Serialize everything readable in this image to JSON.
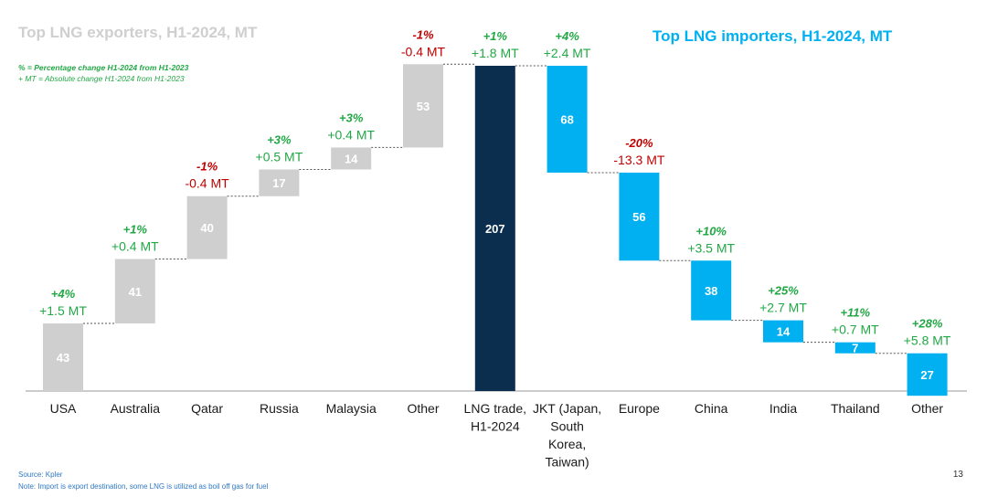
{
  "page": {
    "title_exporters": "Top LNG exporters, H1-2024, MT",
    "title_importers": "Top LNG importers, H1-2024, MT",
    "legend_pct": "% = Percentage change H1-2024 from H1-2023",
    "legend_abs": "+ MT = Absolute change H1-2024 from H1-2023",
    "source": "Source: Kpler",
    "note": "Note: Import is export destination, some LNG is utilized as boil off gas for fuel",
    "page_number": "13"
  },
  "colors": {
    "exporter": "#cfcfcf",
    "total": "#0b2e4f",
    "importer": "#00b0f0",
    "positive": "#22a845",
    "negative": "#c00000"
  },
  "chart_data": {
    "type": "bar",
    "subtype": "waterfall",
    "unit": "MT",
    "ylim": [
      0,
      207
    ],
    "grid": false,
    "categories": [
      "USA",
      "Australia",
      "Qatar",
      "Russia",
      "Malaysia",
      "Other",
      "LNG trade, H1-2024",
      "JKT (Japan, South Korea, Taiwan)",
      "Europe",
      "China",
      "India",
      "Thailand",
      "Other"
    ],
    "category_lines": [
      [
        "USA"
      ],
      [
        "Australia"
      ],
      [
        "Qatar"
      ],
      [
        "Russia"
      ],
      [
        "Malaysia"
      ],
      [
        "Other"
      ],
      [
        "LNG trade,",
        "H1-2024"
      ],
      [
        "JKT (Japan,",
        "South",
        "Korea,",
        "Taiwan)"
      ],
      [
        "Europe"
      ],
      [
        "China"
      ],
      [
        "India"
      ],
      [
        "Thailand"
      ],
      [
        "Other"
      ]
    ],
    "values": [
      43,
      41,
      40,
      17,
      14,
      53,
      207,
      68,
      56,
      38,
      14,
      7,
      27
    ],
    "groups": [
      "exporter",
      "exporter",
      "exporter",
      "exporter",
      "exporter",
      "exporter",
      "total",
      "importer",
      "importer",
      "importer",
      "importer",
      "importer",
      "importer"
    ],
    "pct_change": [
      "+4%",
      "+1%",
      "-1%",
      "+3%",
      "+3%",
      "-1%",
      "+1%",
      "+4%",
      "-20%",
      "+10%",
      "+25%",
      "+11%",
      "+28%"
    ],
    "abs_change": [
      "+1.5 MT",
      "+0.4 MT",
      "-0.4 MT",
      "+0.5 MT",
      "+0.4 MT",
      "-0.4 MT",
      "+1.8 MT",
      "+2.4 MT",
      "-13.3 MT",
      "+3.5 MT",
      "+2.7 MT",
      "+0.7 MT",
      "+5.8 MT"
    ]
  }
}
